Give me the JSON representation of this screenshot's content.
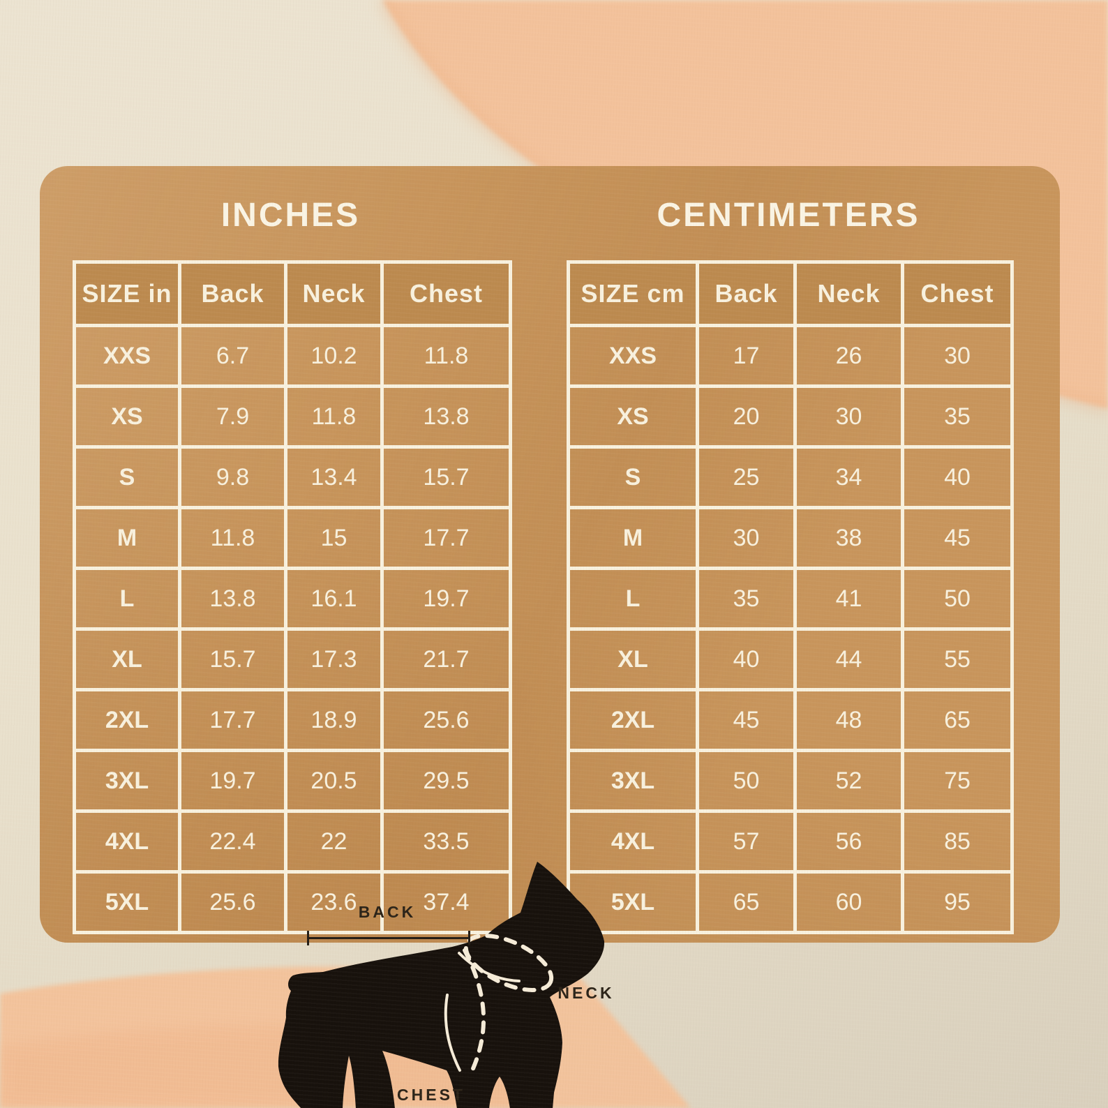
{
  "chart_data": [
    {
      "type": "table",
      "title": "INCHES",
      "unit": "inches",
      "columns": [
        "SIZE in",
        "Back",
        "Neck",
        "Chest"
      ],
      "rows": [
        [
          "XXS",
          "6.7",
          "10.2",
          "11.8"
        ],
        [
          "XS",
          "7.9",
          "11.8",
          "13.8"
        ],
        [
          "S",
          "9.8",
          "13.4",
          "15.7"
        ],
        [
          "M",
          "11.8",
          "15",
          "17.7"
        ],
        [
          "L",
          "13.8",
          "16.1",
          "19.7"
        ],
        [
          "XL",
          "15.7",
          "17.3",
          "21.7"
        ],
        [
          "2XL",
          "17.7",
          "18.9",
          "25.6"
        ],
        [
          "3XL",
          "19.7",
          "20.5",
          "29.5"
        ],
        [
          "4XL",
          "22.4",
          "22",
          "33.5"
        ],
        [
          "5XL",
          "25.6",
          "23.6",
          "37.4"
        ]
      ]
    },
    {
      "type": "table",
      "title": "CENTIMETERS",
      "unit": "centimeters",
      "columns": [
        "SIZE cm",
        "Back",
        "Neck",
        "Chest"
      ],
      "rows": [
        [
          "XXS",
          "17",
          "26",
          "30"
        ],
        [
          "XS",
          "20",
          "30",
          "35"
        ],
        [
          "S",
          "25",
          "34",
          "40"
        ],
        [
          "M",
          "30",
          "38",
          "45"
        ],
        [
          "L",
          "35",
          "41",
          "50"
        ],
        [
          "XL",
          "40",
          "44",
          "55"
        ],
        [
          "2XL",
          "45",
          "48",
          "65"
        ],
        [
          "3XL",
          "50",
          "52",
          "75"
        ],
        [
          "4XL",
          "57",
          "56",
          "85"
        ],
        [
          "5XL",
          "65",
          "60",
          "95"
        ]
      ]
    }
  ],
  "diagram_labels": {
    "back": "BACK",
    "neck": "NECK",
    "chest": "CHEST"
  },
  "colors": {
    "card": "#c8955c",
    "header_cell": "#bc8a4f",
    "table_border": "#f8f1de",
    "table_text": "#f8f1de",
    "title_text": "#faf4e4",
    "background_cream": "#ebe2cf",
    "background_cream_dark": "#d9d0bd",
    "watercolor_peach": "#f4c299",
    "watercolor_peach_deep": "#eeb185",
    "dog_silhouette": "#17110c",
    "diagram_label_text": "#2b2318"
  }
}
